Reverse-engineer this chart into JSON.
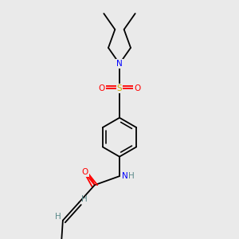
{
  "background_color": "#eaeaea",
  "bond_color": "#000000",
  "colors": {
    "N": "#0000ff",
    "O": "#ff0000",
    "S": "#ccaa00",
    "H": "#5a8a8a",
    "C": "#000000"
  },
  "font_size": 7.5,
  "bond_lw": 1.3
}
